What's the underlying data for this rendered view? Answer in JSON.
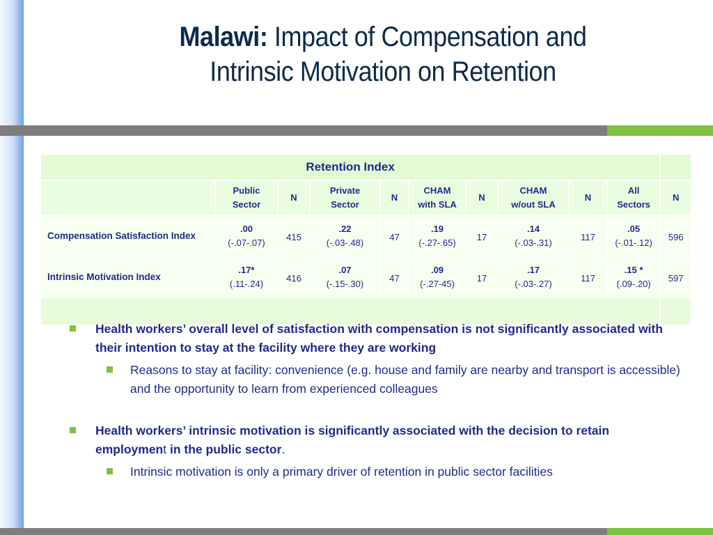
{
  "title": {
    "bold_part": "Malawi:",
    "line1_rest": " Impact of Compensation and",
    "line2": "Intrinsic Motivation on Retention"
  },
  "table": {
    "header_title": "Retention Index",
    "columns": [
      {
        "line1": "Public",
        "line2": "Sector"
      },
      {
        "line1": "N",
        "line2": ""
      },
      {
        "line1": "Private",
        "line2": "Sector"
      },
      {
        "line1": "N",
        "line2": ""
      },
      {
        "line1": "CHAM",
        "line2": "with SLA"
      },
      {
        "line1": "N",
        "line2": ""
      },
      {
        "line1": "CHAM",
        "line2": "w/out SLA"
      },
      {
        "line1": "N",
        "line2": ""
      },
      {
        "line1": "All",
        "line2": "Sectors"
      },
      {
        "line1": "N",
        "line2": ""
      }
    ],
    "rows": [
      {
        "label": "Compensation Satisfaction Index",
        "public": {
          "value": ".00",
          "ci": "(-.07-.07)"
        },
        "public_n": "415",
        "private": {
          "value": ".22",
          "ci": "(-.03-.48)"
        },
        "private_n": "47",
        "cham_sla": {
          "value": ".19",
          "ci": "(-.27-.65)"
        },
        "cham_sla_n": "17",
        "cham_nosla": {
          "value": ".14",
          "ci": "(-.03-.31)"
        },
        "cham_nosla_n": "117",
        "all": {
          "value": ".05",
          "ci": "(-.01-.12)"
        },
        "all_n": "596"
      },
      {
        "label": "Intrinsic Motivation Index",
        "public": {
          "value": ".17*",
          "ci": "(.11-.24)"
        },
        "public_n": "416",
        "private": {
          "value": ".07",
          "ci": "(-.15-.30)"
        },
        "private_n": "47",
        "cham_sla": {
          "value": ".09",
          "ci": "(-.27-45)"
        },
        "cham_sla_n": "17",
        "cham_nosla": {
          "value": ".17",
          "ci": "(-.03-.27)"
        },
        "cham_nosla_n": "117",
        "all": {
          "value": ".15 *",
          "ci": "(.09-.20)"
        },
        "all_n": "597"
      }
    ]
  },
  "bullets": [
    {
      "text": "Health workers’ overall level of satisfaction with compensation is not significantly associated with their intention to stay at the facility where they are working",
      "sub": "Reasons to stay at facility: convenience (e.g. house and family are nearby and transport is accessible) and the opportunity to learn from experienced colleagues"
    },
    {
      "text_a": "Health workers’ intrinsic motivation is significantly associated with the decision to retain employmen",
      "text_b": "t",
      "text_c": " in the public sector",
      "text_d": ".",
      "sub": "Intrinsic motivation is only a primary driver of retention in public sector facilities"
    }
  ],
  "colors": {
    "text_blue": "#1f2a8c",
    "title_navy": "#0c2a4a",
    "accent_green": "#7fc142",
    "rule_gray": "#7d7d7d",
    "table_green": "#e2fbd2"
  }
}
